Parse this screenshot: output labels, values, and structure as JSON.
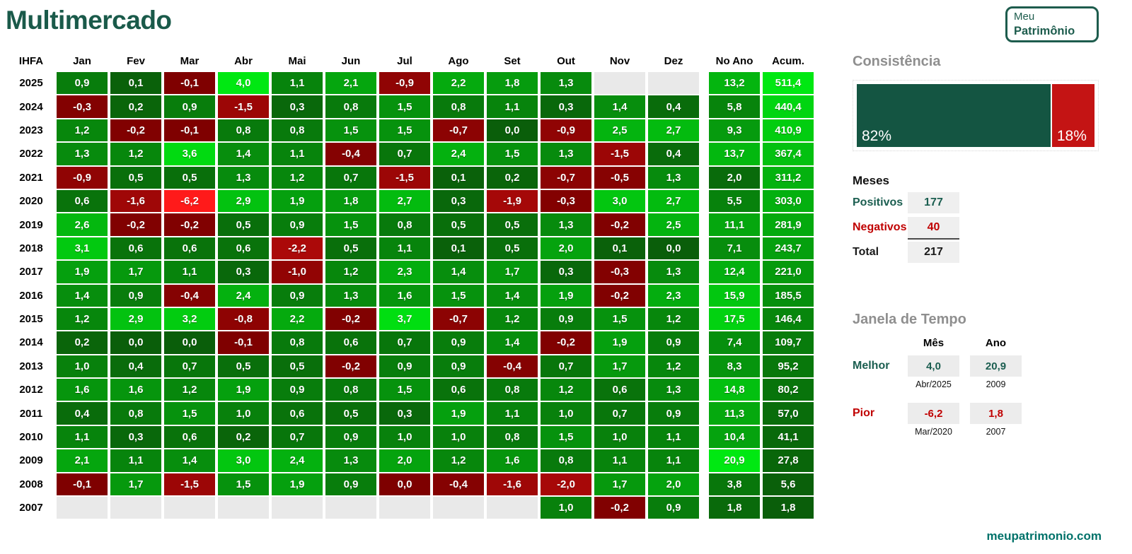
{
  "title": "Multimercado",
  "logo": {
    "line1": "Meu",
    "line2": "Patrimônio"
  },
  "chart_data": {
    "type": "heatmap",
    "title": "Multimercado",
    "index_label": "IHFA",
    "month_columns": [
      "Jan",
      "Fev",
      "Mar",
      "Abr",
      "Mai",
      "Jun",
      "Jul",
      "Ago",
      "Set",
      "Out",
      "Nov",
      "Dez"
    ],
    "summary_columns": [
      "No Ano",
      "Acum."
    ],
    "years": [
      "2025",
      "2024",
      "2023",
      "2022",
      "2021",
      "2020",
      "2019",
      "2018",
      "2017",
      "2016",
      "2015",
      "2014",
      "2013",
      "2012",
      "2011",
      "2010",
      "2009",
      "2008",
      "2007"
    ],
    "values": [
      [
        0.9,
        0.1,
        -0.1,
        4.0,
        1.1,
        2.1,
        -0.9,
        2.2,
        1.8,
        1.3,
        null,
        null,
        13.2,
        511.4
      ],
      [
        -0.3,
        0.2,
        0.9,
        -1.5,
        0.3,
        0.8,
        1.5,
        0.8,
        1.1,
        0.3,
        1.4,
        0.4,
        5.8,
        440.4
      ],
      [
        1.2,
        -0.2,
        -0.1,
        0.8,
        0.8,
        1.5,
        1.5,
        -0.7,
        0.0,
        -0.9,
        2.5,
        2.7,
        9.3,
        410.9
      ],
      [
        1.3,
        1.2,
        3.6,
        1.4,
        1.1,
        -0.4,
        0.7,
        2.4,
        1.5,
        1.3,
        -1.5,
        0.4,
        13.7,
        367.4
      ],
      [
        -0.9,
        0.5,
        0.5,
        1.3,
        1.2,
        0.7,
        -1.5,
        0.1,
        0.2,
        -0.7,
        -0.5,
        1.3,
        2.0,
        311.2
      ],
      [
        0.6,
        -1.6,
        -6.2,
        2.9,
        1.9,
        1.8,
        2.7,
        0.3,
        -1.9,
        -0.3,
        3.0,
        2.7,
        5.5,
        303.0
      ],
      [
        2.6,
        -0.2,
        -0.2,
        0.5,
        0.9,
        1.5,
        0.8,
        0.5,
        0.5,
        1.3,
        -0.2,
        2.5,
        11.1,
        281.9
      ],
      [
        3.1,
        0.6,
        0.6,
        0.6,
        -2.2,
        0.5,
        1.1,
        0.1,
        0.5,
        2.0,
        0.1,
        0.0,
        7.1,
        243.7
      ],
      [
        1.9,
        1.7,
        1.1,
        0.3,
        -1.0,
        1.2,
        2.3,
        1.4,
        1.7,
        0.3,
        -0.3,
        1.3,
        12.4,
        221.0
      ],
      [
        1.4,
        0.9,
        -0.4,
        2.4,
        0.9,
        1.3,
        1.6,
        1.5,
        1.4,
        1.9,
        -0.2,
        2.3,
        15.9,
        185.5
      ],
      [
        1.2,
        2.9,
        3.2,
        -0.8,
        2.2,
        -0.2,
        3.7,
        -0.7,
        1.2,
        0.9,
        1.5,
        1.2,
        17.5,
        146.4
      ],
      [
        0.2,
        0.0,
        0.0,
        -0.1,
        0.8,
        0.6,
        0.7,
        0.9,
        1.4,
        -0.2,
        1.9,
        0.9,
        7.4,
        109.7
      ],
      [
        1.0,
        0.4,
        0.7,
        0.5,
        0.5,
        -0.2,
        0.9,
        0.9,
        -0.4,
        0.7,
        1.7,
        1.2,
        8.3,
        95.2
      ],
      [
        1.6,
        1.6,
        1.2,
        1.9,
        0.9,
        0.8,
        1.5,
        0.6,
        0.8,
        1.2,
        0.6,
        1.3,
        14.8,
        80.2
      ],
      [
        0.4,
        0.8,
        1.5,
        1.0,
        0.6,
        0.5,
        0.3,
        1.9,
        1.1,
        1.0,
        0.7,
        0.9,
        11.3,
        57.0
      ],
      [
        1.1,
        0.3,
        0.6,
        0.2,
        0.7,
        0.9,
        1.0,
        1.0,
        0.8,
        1.5,
        1.0,
        1.1,
        10.4,
        41.1
      ],
      [
        2.1,
        1.1,
        1.4,
        3.0,
        2.4,
        1.3,
        2.0,
        1.2,
        1.6,
        0.8,
        1.1,
        1.1,
        20.9,
        27.8
      ],
      [
        -0.1,
        1.7,
        -1.5,
        1.5,
        1.9,
        0.9,
        -0.04,
        -0.4,
        -1.6,
        -2.0,
        1.7,
        2.0,
        3.8,
        5.6
      ],
      [
        null,
        null,
        null,
        null,
        null,
        null,
        null,
        null,
        null,
        1.0,
        -0.2,
        0.9,
        1.8,
        1.8
      ]
    ],
    "color_scale": {
      "positive_low": "#0a5e0a",
      "positive_high": "#00e812",
      "negative_low": "#7d0000",
      "negative_high": "#ff1a1a",
      "month_positive_max": 4.0,
      "month_negative_max": 6.2,
      "no_ano_max": 20.9,
      "acum_max": 511.4,
      "empty_cell": "#e9e9e9"
    }
  },
  "consistencia": {
    "title": "Consistência",
    "positive_label": "82%",
    "negative_label": "18%",
    "positive_pct": 82,
    "negative_pct": 18,
    "positive_color": "#145542",
    "negative_color": "#c41414"
  },
  "meses": {
    "title": "Meses",
    "rows": [
      {
        "label": "Positivos",
        "value": "177"
      },
      {
        "label": "Negativos",
        "value": "40"
      },
      {
        "label": "Total",
        "value": "217"
      }
    ]
  },
  "janela": {
    "title": "Janela de Tempo",
    "col_month": "Mês",
    "col_year": "Ano",
    "melhor": {
      "label": "Melhor",
      "mes": "4,0",
      "mes_period": "Abr/2025",
      "ano": "20,9",
      "ano_period": "2009"
    },
    "pior": {
      "label": "Pior",
      "mes": "-6,2",
      "mes_period": "Mar/2020",
      "ano": "1,8",
      "ano_period": "2007"
    }
  },
  "footer": {
    "url": "meupatrimonio.com"
  }
}
